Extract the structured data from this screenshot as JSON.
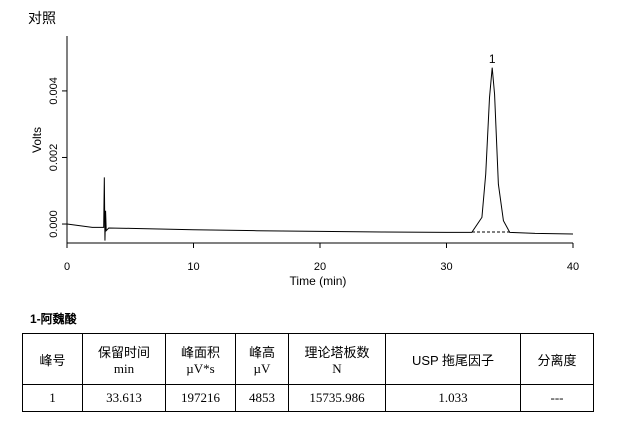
{
  "header": "对照",
  "chart_data": {
    "type": "line",
    "x_label": "Time (min)",
    "y_label": "Volts",
    "peak_label": "1",
    "x": [
      0,
      2,
      2.9,
      2.95,
      3.0,
      3.05,
      3.1,
      3.3,
      5,
      10,
      15,
      20,
      25,
      30,
      32,
      32.8,
      33.1,
      33.4,
      33.613,
      33.8,
      34.1,
      34.5,
      35,
      37,
      40
    ],
    "series": [
      {
        "name": "对照",
        "color": "#000000",
        "values": [
          0,
          -0.0001,
          -0.0001,
          0.0014,
          -0.0005,
          0.0004,
          -0.0002,
          -0.00012,
          -0.00013,
          -0.00017,
          -0.0002,
          -0.00022,
          -0.00024,
          -0.00025,
          -0.00025,
          0.0002,
          0.0015,
          0.0038,
          0.0047,
          0.0039,
          0.0012,
          0.0001,
          -0.00025,
          -0.00028,
          -0.0003
        ]
      }
    ],
    "xlim": [
      0,
      40
    ],
    "xticks": [
      0,
      10,
      20,
      30,
      40
    ],
    "ylim": [
      -0.00057,
      0.00565
    ],
    "yticks": [
      {
        "value": 0,
        "label": "0.000"
      },
      {
        "value": 0.002,
        "label": "0.002"
      },
      {
        "value": 0.004,
        "label": "0.004"
      }
    ]
  },
  "section_title": "1-阿魏酸",
  "table": {
    "header": [
      [
        "峰号"
      ],
      [
        "保留时间",
        "min"
      ],
      [
        "峰面积",
        "µV*s"
      ],
      [
        "峰高",
        "µV"
      ],
      [
        "理论塔板数",
        "N"
      ],
      [
        "USP 拖尾因子"
      ],
      [
        "分离度"
      ]
    ],
    "rows": [
      [
        "1",
        "33.613",
        "197216",
        "4853",
        "15735.986",
        "1.033",
        "---"
      ]
    ]
  }
}
